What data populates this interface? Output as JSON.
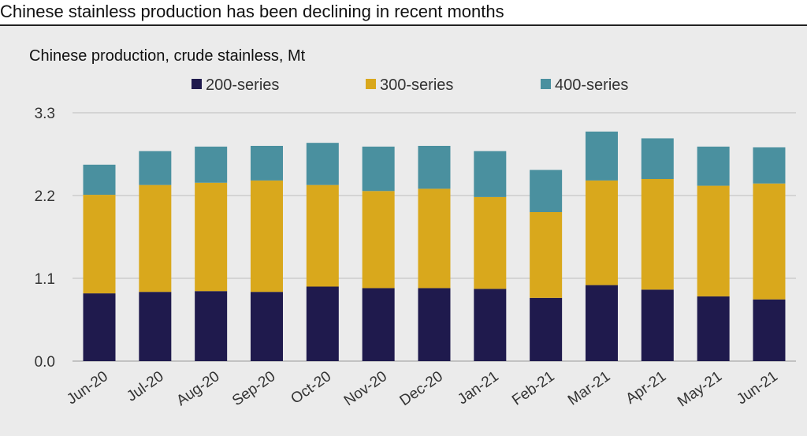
{
  "headline": "Chinese stainless production has been declining in recent months",
  "chart_data": {
    "type": "bar",
    "stacked": true,
    "title": "Chinese production, crude stainless, Mt",
    "xlabel": "",
    "ylabel": "",
    "categories": [
      "Jun-20",
      "Jul-20",
      "Aug-20",
      "Sep-20",
      "Oct-20",
      "Nov-20",
      "Dec-20",
      "Jan-21",
      "Feb-21",
      "Mar-21",
      "Apr-21",
      "May-21",
      "Jun-21"
    ],
    "series": [
      {
        "name": "200-series",
        "color": "#1f1a4d",
        "values": [
          0.9,
          0.92,
          0.93,
          0.92,
          0.99,
          0.97,
          0.97,
          0.96,
          0.84,
          1.01,
          0.95,
          0.86,
          0.82
        ]
      },
      {
        "name": "300-series",
        "color": "#d9a81c",
        "values": [
          1.31,
          1.42,
          1.44,
          1.48,
          1.35,
          1.29,
          1.32,
          1.22,
          1.14,
          1.39,
          1.47,
          1.47,
          1.54
        ]
      },
      {
        "name": "400-series",
        "color": "#4a909f",
        "values": [
          0.4,
          0.45,
          0.48,
          0.46,
          0.56,
          0.59,
          0.57,
          0.61,
          0.56,
          0.65,
          0.54,
          0.52,
          0.48
        ]
      }
    ],
    "ylim": [
      0,
      3.3
    ],
    "yticks": [
      "0.0",
      "1.1",
      "2.2",
      "3.3"
    ],
    "ytick_values": [
      0,
      1.1,
      2.2,
      3.3
    ],
    "grid": true,
    "legend_position": "top"
  }
}
